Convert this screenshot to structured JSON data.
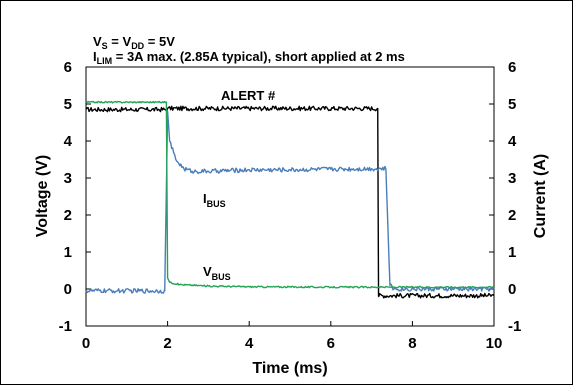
{
  "chart_data": {
    "type": "line",
    "annotation_line1": {
      "a": "V",
      "a_sub": "S",
      "b": " = V",
      "b_sub": "DD",
      "c": " = 5V"
    },
    "annotation_line2": {
      "a": "I",
      "a_sub": "LIM",
      "b": " = 3A max. (2.85A typical), short applied at 2 ms"
    },
    "xlabel": "Time (ms)",
    "ylabel_left": "Voltage (V)",
    "ylabel_right": "Current (A)",
    "xlim": [
      0,
      10
    ],
    "ylim": [
      -1,
      6
    ],
    "y2lim": [
      -1,
      6
    ],
    "x_ticks": [
      "0",
      "2",
      "4",
      "6",
      "8",
      "10"
    ],
    "y_ticks": [
      "-1",
      "0",
      "1",
      "2",
      "3",
      "4",
      "5",
      "6"
    ],
    "y2_ticks": [
      "-1",
      "0",
      "1",
      "2",
      "3",
      "4",
      "5",
      "6"
    ],
    "grid": false,
    "series": [
      {
        "name": "ALERT #",
        "label_main": "ALERT #",
        "label_sub": "",
        "axis": "left",
        "color": "#000000",
        "noise": 0.06,
        "x": [
          0,
          1.97,
          2.0,
          7.15,
          7.17,
          10
        ],
        "y": [
          4.85,
          4.85,
          4.88,
          4.88,
          -0.18,
          -0.18
        ]
      },
      {
        "name": "IBUS",
        "label_main": "I",
        "label_sub": "BUS",
        "axis": "right",
        "color": "#4a7ebb",
        "noise": 0.06,
        "x": [
          0,
          1.93,
          2.0,
          2.05,
          2.2,
          2.4,
          2.6,
          3.0,
          4.0,
          5.0,
          6.0,
          7.0,
          7.35,
          7.45,
          7.55,
          10
        ],
        "y": [
          -0.05,
          -0.05,
          4.8,
          4.0,
          3.5,
          3.25,
          3.18,
          3.18,
          3.22,
          3.22,
          3.24,
          3.25,
          3.25,
          0.1,
          0.0,
          0.0
        ]
      },
      {
        "name": "VBUS",
        "label_main": "V",
        "label_sub": "BUS",
        "axis": "left",
        "color": "#23a455",
        "noise": 0.02,
        "x": [
          0,
          1.97,
          2.0,
          2.05,
          2.3,
          3.0,
          4.0,
          6.0,
          10
        ],
        "y": [
          5.05,
          5.05,
          0.3,
          0.18,
          0.12,
          0.08,
          0.06,
          0.05,
          0.05
        ]
      }
    ]
  }
}
